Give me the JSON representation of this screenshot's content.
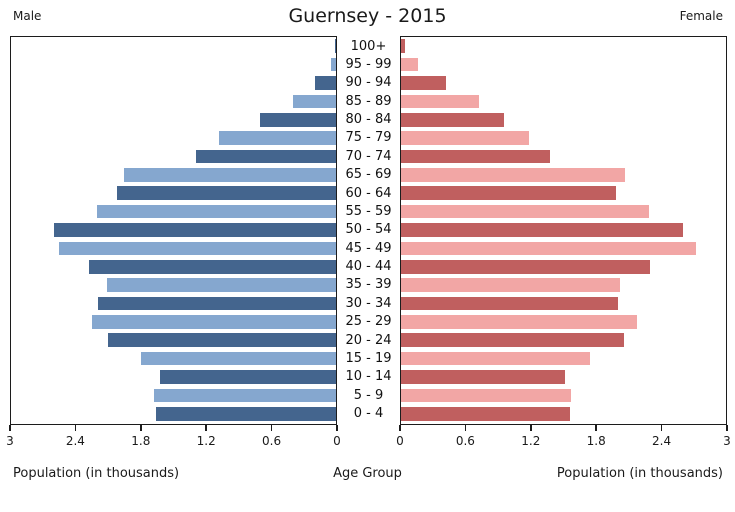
{
  "title": "Guernsey - 2015",
  "left_header": "Male",
  "right_header": "Female",
  "xlabel_left": "Population (in thousands)",
  "xlabel_center": "Age Group",
  "xlabel_right": "Population (in thousands)",
  "colors": {
    "male_dark": "#44658E",
    "male_light": "#85A7CF",
    "female_dark": "#C05F5F",
    "female_light": "#F2A6A5",
    "frame": "#1c1c1c",
    "background": "#ffffff"
  },
  "chart_data": {
    "type": "bar",
    "subtype": "population-pyramid",
    "title": "Guernsey - 2015",
    "xlabel": "Population (in thousands)",
    "center_label": "Age Group",
    "xlim": [
      0,
      3
    ],
    "grid": false,
    "legend_position": "none",
    "age_groups": [
      "100+",
      "95 - 99",
      "90 - 94",
      "85 - 89",
      "80 - 84",
      "75 - 79",
      "70 - 74",
      "65 - 69",
      "60 - 64",
      "55 - 59",
      "50 - 54",
      "45 - 49",
      "40 - 44",
      "35 - 39",
      "30 - 34",
      "25 - 29",
      "20 - 24",
      "15 - 19",
      "10 - 14",
      "5 - 9",
      "0 - 4"
    ],
    "series": [
      {
        "name": "Male",
        "side": "left",
        "values": [
          0.02,
          0.06,
          0.2,
          0.41,
          0.71,
          1.09,
          1.3,
          1.97,
          2.03,
          2.22,
          2.61,
          2.57,
          2.29,
          2.12,
          2.21,
          2.26,
          2.11,
          1.81,
          1.63,
          1.69,
          1.67
        ]
      },
      {
        "name": "Female",
        "side": "right",
        "values": [
          0.05,
          0.17,
          0.42,
          0.73,
          0.96,
          1.19,
          1.38,
          2.08,
          1.99,
          2.3,
          2.61,
          2.73,
          2.31,
          2.03,
          2.01,
          2.19,
          2.07,
          1.75,
          1.52,
          1.58,
          1.57
        ]
      }
    ],
    "ticks_left": [
      "3",
      "2.4",
      "1.8",
      "1.2",
      "0.6",
      "0"
    ],
    "ticks_right": [
      "0",
      "0.6",
      "1.2",
      "1.8",
      "2.4",
      "3"
    ]
  }
}
